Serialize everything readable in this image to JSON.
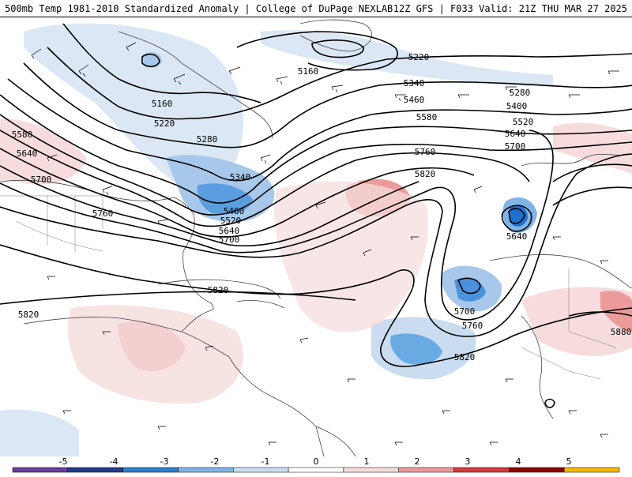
{
  "header": {
    "left_title": "500mb Temp 1981-2010 Standardized Anomaly | College of DuPage NEXLAB",
    "right_title": "12Z GFS | F033 Valid: 21Z THU MAR 27 2025"
  },
  "contour_labels": {
    "c1": "5160",
    "c2": "5220",
    "c3": "5160",
    "c4": "5220",
    "c5": "5280",
    "c6": "5340",
    "c7": "5460",
    "c8": "5520",
    "c9": "5580",
    "c10": "5640",
    "c11": "5700",
    "c12": "5760",
    "c13": "5820",
    "c14": "5580",
    "c15": "5640",
    "c16": "5700",
    "c17": "5340",
    "c18": "5460",
    "c19": "5520",
    "c20": "5640",
    "c21": "5700",
    "c22": "5760",
    "c23": "5820",
    "c24": "5820",
    "c25": "5280",
    "c26": "5400",
    "c27": "5640",
    "c28": "5700",
    "c29": "5760",
    "c30": "5820",
    "c31": "5880"
  },
  "colorbar": {
    "ticks": [
      "-5",
      "-4",
      "-3",
      "-2",
      "-1",
      "0",
      "1",
      "2",
      "3",
      "4",
      "5"
    ],
    "colors": [
      "#6a3d9a",
      "#1f3c88",
      "#2f7fd0",
      "#7fb4e6",
      "#c9dcf0",
      "#ffffff",
      "#f6dcdc",
      "#ec9a9a",
      "#d63a3a",
      "#8b0000",
      "#f5b800"
    ]
  }
}
